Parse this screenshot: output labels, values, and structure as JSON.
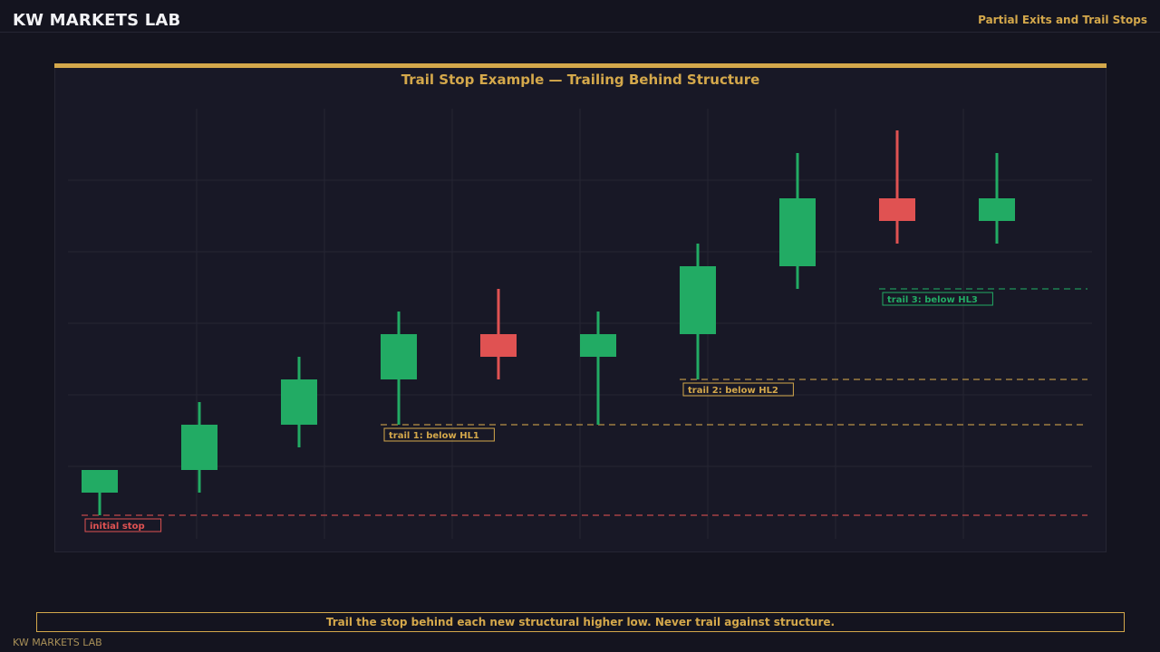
{
  "header": {
    "brand": "KW MARKETS LAB",
    "topic": "Partial Exits and Trail Stops"
  },
  "chart_data": {
    "type": "candlestick",
    "title": "Trail Stop Example — Trailing Behind Structure",
    "colors": {
      "bull": "#22ab64",
      "bear": "#e05252",
      "trail": "#d4a84b",
      "initial": "#e05252",
      "final": "#22ab64",
      "grid": "#262633"
    },
    "ylim": [
      92,
      111
    ],
    "candles": [
      {
        "open": 93.0,
        "high": 94.0,
        "low": 92.0,
        "close": 94.0
      },
      {
        "open": 94.0,
        "high": 97.0,
        "low": 93.0,
        "close": 96.0
      },
      {
        "open": 96.0,
        "high": 99.0,
        "low": 95.0,
        "close": 98.0
      },
      {
        "open": 98.0,
        "high": 101.0,
        "low": 96.0,
        "close": 100.0
      },
      {
        "open": 100.0,
        "high": 102.0,
        "low": 98.0,
        "close": 99.0
      },
      {
        "open": 99.0,
        "high": 101.0,
        "low": 96.0,
        "close": 100.0
      },
      {
        "open": 100.0,
        "high": 104.0,
        "low": 98.0,
        "close": 103.0
      },
      {
        "open": 103.0,
        "high": 108.0,
        "low": 102.0,
        "close": 106.0
      },
      {
        "open": 106.0,
        "high": 109.0,
        "low": 104.0,
        "close": 105.0
      },
      {
        "open": 105.0,
        "high": 108.0,
        "low": 104.0,
        "close": 106.0
      }
    ],
    "stops": [
      {
        "label": "initial stop",
        "price": 92.0,
        "from_index": 0,
        "style": "initial"
      },
      {
        "label": "trail 1: below HL1",
        "price": 96.0,
        "from_index": 3,
        "style": "trail"
      },
      {
        "label": "trail 2: below HL2",
        "price": 98.0,
        "from_index": 6,
        "style": "trail"
      },
      {
        "label": "trail 3: below HL3",
        "price": 102.0,
        "from_index": 8,
        "style": "final"
      }
    ]
  },
  "footer": {
    "note": "Trail the stop behind each new structural higher low. Never trail against structure.",
    "brand": "KW MARKETS LAB"
  }
}
